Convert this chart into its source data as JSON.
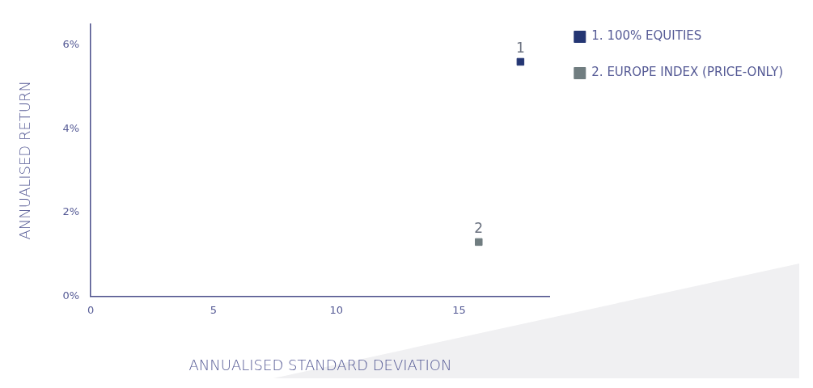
{
  "chart_data": {
    "type": "scatter",
    "xlabel": "ANNUALISED STANDARD DEVIATION",
    "ylabel": "ANNUALISED RETURN",
    "xlim": [
      0,
      18.7
    ],
    "xticks": [
      0,
      5,
      10,
      15
    ],
    "ylim": [
      0,
      6.5
    ],
    "yticks": [
      {
        "value": 0,
        "label": "0%"
      },
      {
        "value": 2,
        "label": "2%"
      },
      {
        "value": 4,
        "label": "4%"
      },
      {
        "value": 6,
        "label": "6%"
      }
    ],
    "series": [
      {
        "name": "1. 100% EQUITIES",
        "color": "#243673",
        "x": [
          17.5
        ],
        "values": [
          5.6
        ]
      },
      {
        "name": "2. EUROPE INDEX (PRICE-ONLY)",
        "color": "#707d80",
        "x": [
          15.8
        ],
        "values": [
          1.3
        ]
      }
    ],
    "annotations": [
      {
        "text": "1",
        "x": 17.5,
        "y": 5.6
      },
      {
        "text": "2",
        "x": 15.8,
        "y": 1.3
      }
    ],
    "marker": "square",
    "grid": false,
    "legend": "top right"
  }
}
